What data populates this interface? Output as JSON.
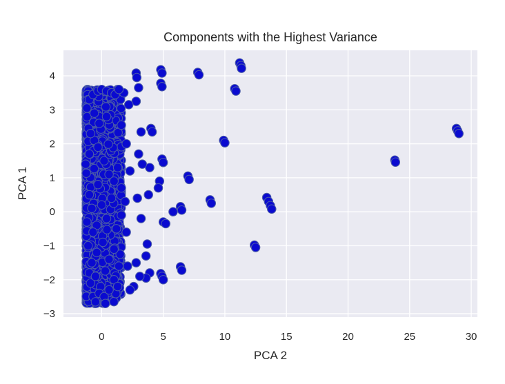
{
  "chart_data": {
    "type": "scatter",
    "title": "Components with the Highest Variance",
    "xlabel": "PCA 2",
    "ylabel": "PCA 1",
    "xlim": [
      -3.1,
      30.5
    ],
    "ylim": [
      -3.1,
      4.75
    ],
    "xticks": [
      0,
      5,
      10,
      15,
      20,
      25,
      30
    ],
    "yticks": [
      -3,
      -2,
      -1,
      0,
      1,
      2,
      3,
      4
    ],
    "grid": true,
    "colors": {
      "background": "#eaeaf2",
      "grid": "#ffffff",
      "marker": "#0a0ad0",
      "marker_edge": "#4a5aa8"
    },
    "points": [
      [
        28.8,
        2.45
      ],
      [
        28.9,
        2.38
      ],
      [
        29.0,
        2.3
      ],
      [
        23.8,
        1.52
      ],
      [
        23.85,
        1.46
      ],
      [
        13.4,
        0.42
      ],
      [
        13.55,
        0.3
      ],
      [
        13.7,
        0.18
      ],
      [
        13.8,
        0.08
      ],
      [
        12.4,
        -0.98
      ],
      [
        12.5,
        -1.05
      ],
      [
        11.2,
        4.38
      ],
      [
        11.3,
        4.3
      ],
      [
        11.35,
        4.22
      ],
      [
        10.8,
        3.62
      ],
      [
        10.9,
        3.55
      ],
      [
        9.9,
        2.1
      ],
      [
        10.0,
        2.03
      ],
      [
        8.8,
        0.35
      ],
      [
        8.9,
        0.25
      ],
      [
        7.8,
        4.1
      ],
      [
        7.9,
        4.03
      ],
      [
        7.0,
        1.05
      ],
      [
        7.1,
        0.95
      ],
      [
        6.4,
        0.15
      ],
      [
        6.5,
        0.05
      ],
      [
        6.4,
        -1.62
      ],
      [
        6.5,
        -1.72
      ],
      [
        4.8,
        4.18
      ],
      [
        4.9,
        4.08
      ],
      [
        4.8,
        3.78
      ],
      [
        4.9,
        3.68
      ],
      [
        4.9,
        1.55
      ],
      [
        5.0,
        1.45
      ],
      [
        5.0,
        -0.3
      ],
      [
        5.2,
        -0.35
      ],
      [
        4.8,
        -1.82
      ],
      [
        4.9,
        -1.9
      ],
      [
        5.0,
        -2.0
      ],
      [
        5.8,
        0.0
      ],
      [
        4.7,
        0.9
      ],
      [
        4.6,
        0.7
      ],
      [
        4.0,
        2.45
      ],
      [
        4.1,
        2.35
      ],
      [
        3.9,
        1.3
      ],
      [
        3.8,
        0.5
      ],
      [
        3.7,
        -0.95
      ],
      [
        3.6,
        -1.3
      ],
      [
        3.9,
        -1.8
      ],
      [
        3.6,
        -1.95
      ],
      [
        2.8,
        4.08
      ],
      [
        2.85,
        3.95
      ],
      [
        3.0,
        3.65
      ],
      [
        2.8,
        3.25
      ],
      [
        3.2,
        2.35
      ],
      [
        3.0,
        1.7
      ],
      [
        3.3,
        1.4
      ],
      [
        2.9,
        0.4
      ],
      [
        3.2,
        -0.2
      ],
      [
        2.8,
        -1.5
      ],
      [
        3.1,
        -1.9
      ],
      [
        2.6,
        -2.2
      ],
      [
        1.8,
        3.5
      ],
      [
        2.2,
        3.15
      ],
      [
        2.0,
        2.0
      ],
      [
        2.3,
        1.2
      ],
      [
        1.9,
        0.3
      ],
      [
        2.0,
        -0.6
      ],
      [
        2.1,
        -1.6
      ],
      [
        2.3,
        -2.3
      ],
      [
        1.6,
        2.55
      ],
      [
        1.5,
        -1.25
      ],
      [
        -1.2,
        3.05
      ],
      [
        -1.0,
        3.3
      ],
      [
        -0.7,
        3.45
      ],
      [
        -0.3,
        3.55
      ],
      [
        0.0,
        3.6
      ],
      [
        0.4,
        3.55
      ],
      [
        0.8,
        3.5
      ],
      [
        1.1,
        3.45
      ],
      [
        1.4,
        3.6
      ],
      [
        -0.6,
        2.9
      ],
      [
        -0.2,
        2.6
      ],
      [
        0.4,
        2.8
      ],
      [
        -1.3,
        1.4
      ],
      [
        -1.0,
        1.7
      ],
      [
        -0.6,
        2.1
      ],
      [
        -0.3,
        1.9
      ],
      [
        0.2,
        1.5
      ],
      [
        0.6,
        1.1
      ],
      [
        1.0,
        0.9
      ],
      [
        1.3,
        1.3
      ],
      [
        1.6,
        0.7
      ],
      [
        -1.2,
        -0.3
      ],
      [
        -1.0,
        0.5
      ],
      [
        -0.8,
        0.1
      ],
      [
        -0.4,
        -0.4
      ],
      [
        0.0,
        0.2
      ],
      [
        0.4,
        -0.2
      ],
      [
        0.8,
        0.4
      ],
      [
        1.2,
        -0.5
      ],
      [
        1.6,
        -0.1
      ],
      [
        -1.1,
        -1.0
      ],
      [
        -0.8,
        -1.5
      ],
      [
        -0.4,
        -1.2
      ],
      [
        0.1,
        -0.9
      ],
      [
        0.6,
        -1.4
      ],
      [
        1.0,
        -1.1
      ],
      [
        1.4,
        -1.6
      ],
      [
        -0.9,
        -2.1
      ],
      [
        -0.7,
        -2.5
      ],
      [
        -0.5,
        -2.65
      ],
      [
        -0.2,
        -2.4
      ],
      [
        0.2,
        -2.5
      ],
      [
        0.6,
        -2.3
      ],
      [
        1.0,
        -2.0
      ],
      [
        1.3,
        -2.2
      ],
      [
        -1.0,
        -1.8
      ],
      [
        -0.5,
        -1.9
      ],
      [
        -0.9,
        2.3
      ],
      [
        -0.3,
        0.8
      ],
      [
        0.3,
        -2.7
      ],
      [
        -0.7,
        -0.6
      ]
    ],
    "dense_region": {
      "x_range": [
        -1.25,
        1.6
      ],
      "y_range": [
        -2.7,
        3.6
      ],
      "count": 2200
    }
  }
}
